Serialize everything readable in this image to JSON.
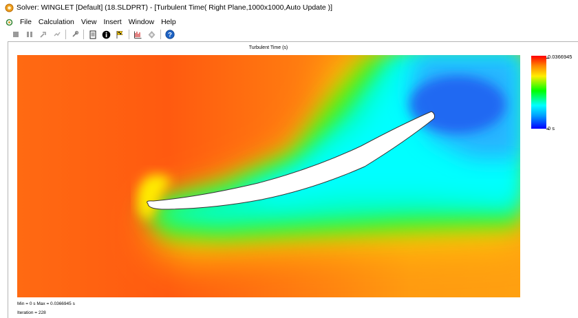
{
  "window": {
    "title": "Solver: WINGLET [Default] (18.SLDPRT) - [Turbulent Time( Right Plane,1000x1000,Auto Update )]"
  },
  "menu": {
    "items": [
      "File",
      "Calculation",
      "View",
      "Insert",
      "Window",
      "Help"
    ]
  },
  "toolbar": {
    "buttons": [
      "stop-icon",
      "pause-icon",
      "suspend-icon",
      "solve-icon",
      "insert-goal-icon",
      "file-info-icon",
      "info-icon",
      "flag-icon",
      "goal-plot-icon",
      "preview-icon",
      "help-icon"
    ]
  },
  "plot": {
    "title": "Turbulent Time (s)",
    "legend": {
      "max": "0.0366945",
      "min": "0 s"
    },
    "colors": [
      "#ff0000",
      "#ff8800",
      "#ffee00",
      "#00ff00",
      "#00ffff",
      "#00a0ff",
      "#0000ff"
    ]
  },
  "status": {
    "minmax": "Min = 0 s   Max = 0.0366945 s",
    "iteration": "Iteration = 228"
  }
}
